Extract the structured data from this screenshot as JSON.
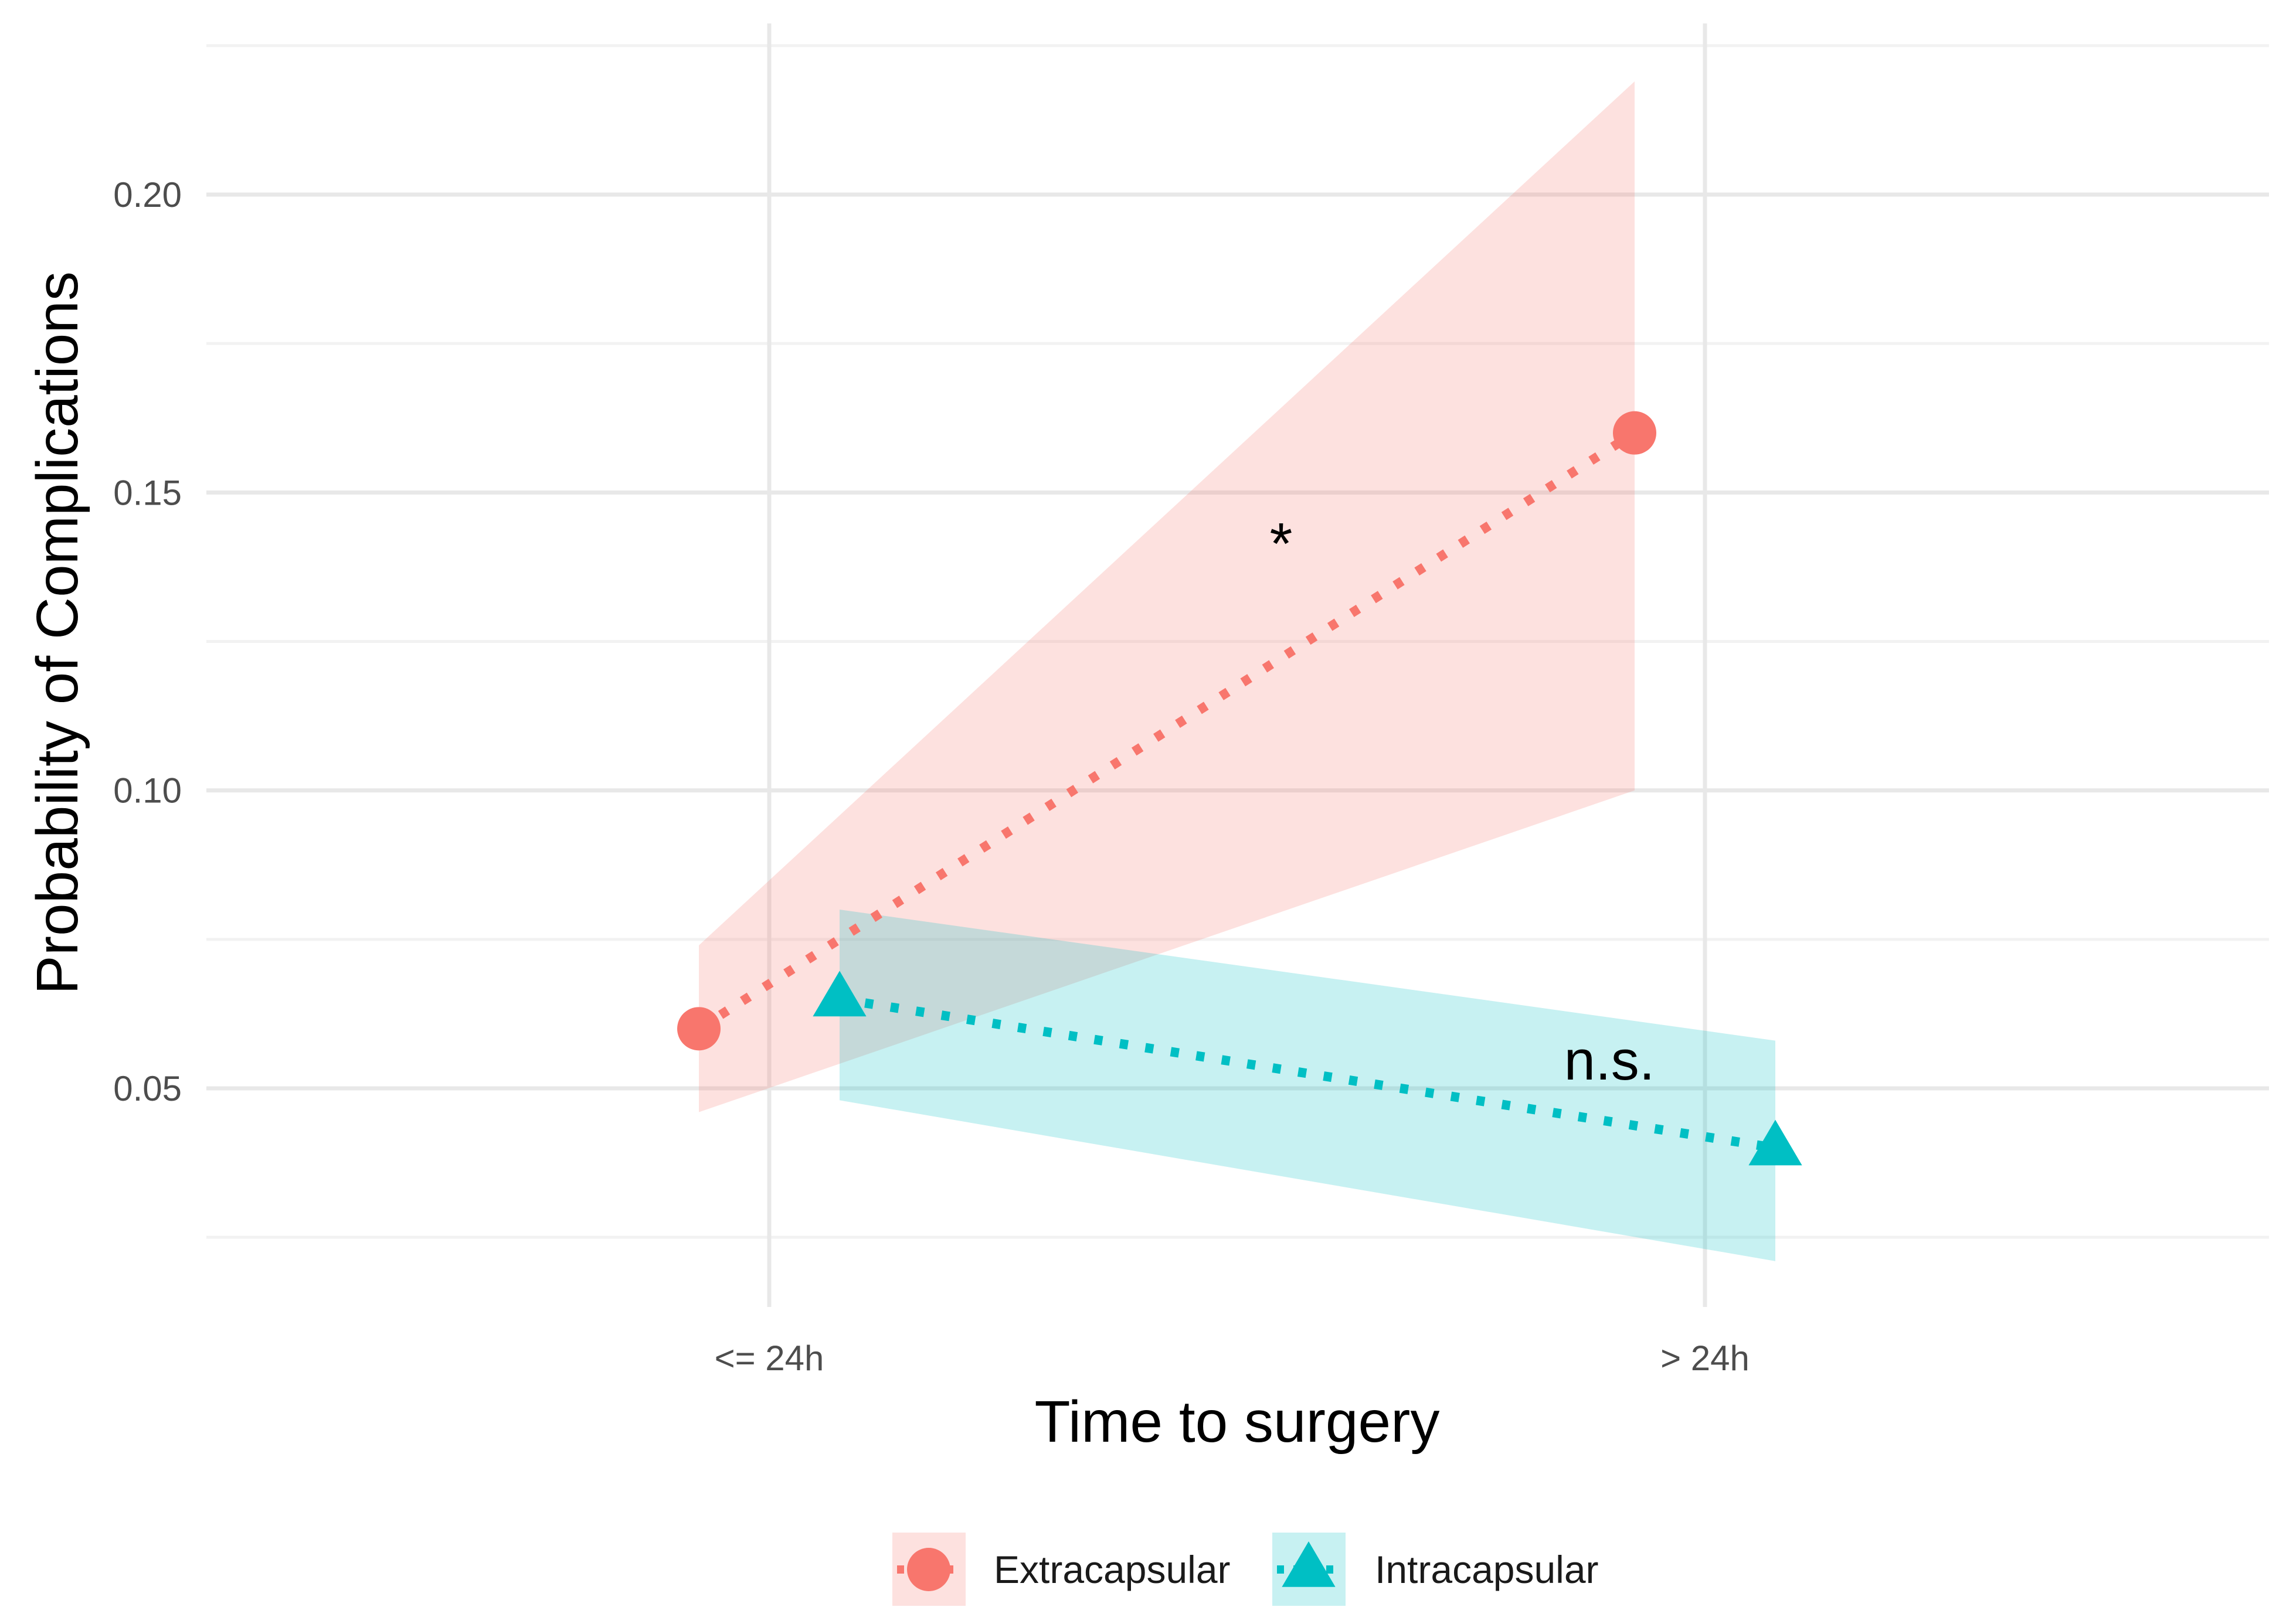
{
  "chart_data": {
    "type": "line",
    "title": "",
    "xlabel": "Time to surgery",
    "ylabel": "Probability of Complications",
    "categories": [
      "<= 24h",
      "> 24h"
    ],
    "ylim": [
      0.025,
      0.225
    ],
    "yticks": [
      0.05,
      0.1,
      0.15,
      0.2
    ],
    "ytick_labels": [
      "0.05",
      "0.10",
      "0.15",
      "0.20"
    ],
    "grid": true,
    "legend_position": "bottom",
    "series": [
      {
        "name": "Extracapsular",
        "marker": "circle",
        "color": "#F8766D",
        "band_color": "#FCDCDA",
        "values": [
          0.06,
          0.16
        ],
        "ci_low": [
          0.046,
          0.1
        ],
        "ci_high": [
          0.074,
          0.219
        ]
      },
      {
        "name": "Intracapsular",
        "marker": "triangle",
        "color": "#00BFC4",
        "band_color": "#C9EEF0",
        "values": [
          0.065,
          0.04
        ],
        "ci_low": [
          0.048,
          0.021
        ],
        "ci_high": [
          0.08,
          0.058
        ]
      }
    ],
    "annotations": [
      {
        "text": "*",
        "series": "Extracapsular"
      },
      {
        "text": "n.s.",
        "series": "Intracapsular"
      }
    ]
  }
}
